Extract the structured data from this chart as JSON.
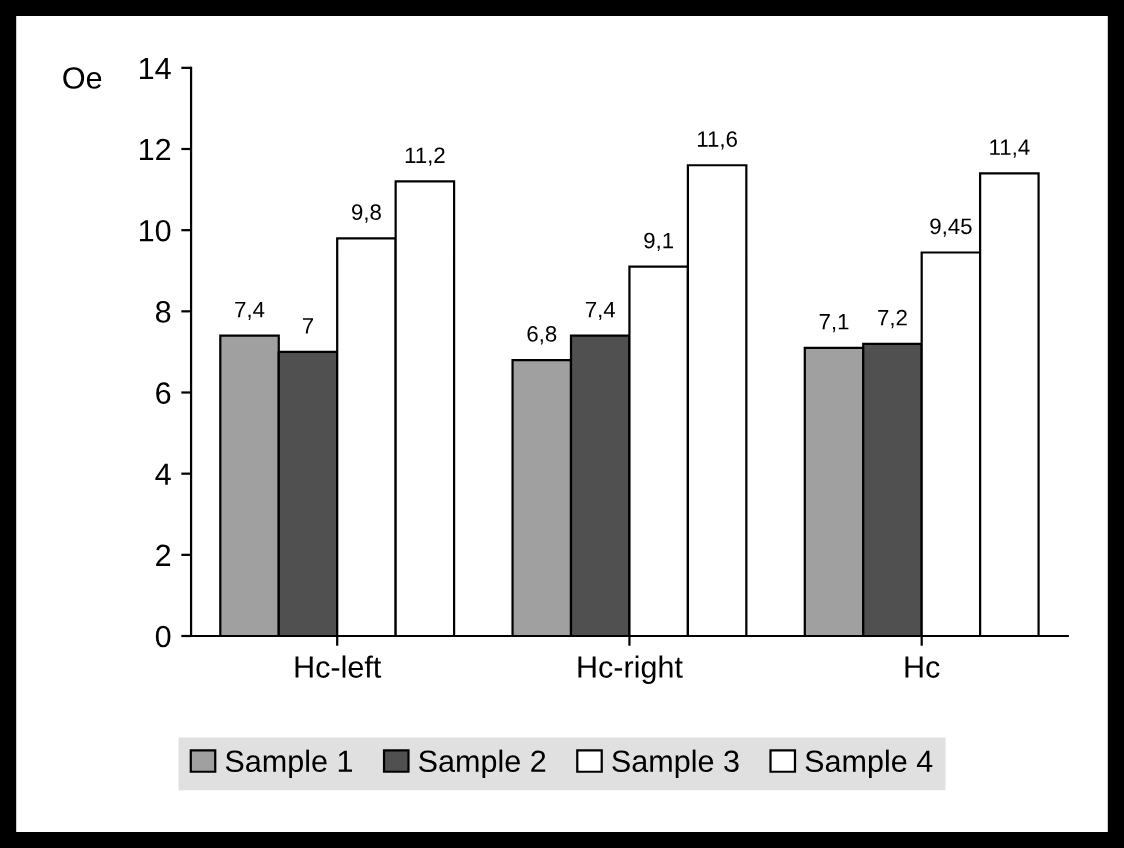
{
  "chart_data": {
    "type": "bar",
    "ylabel": "Oe",
    "categories": [
      "Hc-left",
      "Hc-right",
      "Hc"
    ],
    "series": [
      {
        "name": "Sample 1",
        "color": "#a0a0a0",
        "values": [
          7.4,
          6.8,
          7.1
        ],
        "value_labels": [
          "7,4",
          "6,8",
          "7,1"
        ]
      },
      {
        "name": "Sample 2",
        "color": "#505050",
        "values": [
          7,
          7.4,
          7.2
        ],
        "value_labels": [
          "7",
          "7,4",
          "7,2"
        ]
      },
      {
        "name": "Sample 3",
        "color": "#ffffff",
        "values": [
          9.8,
          9.1,
          9.45
        ],
        "value_labels": [
          "9,8",
          "9,1",
          "9,45"
        ]
      },
      {
        "name": "Sample 4",
        "color": "#ffffff",
        "values": [
          11.2,
          11.6,
          11.4
        ],
        "value_labels": [
          "11,2",
          "11,6",
          "11,4"
        ]
      }
    ],
    "ylim": [
      0,
      14
    ],
    "yticks": [
      0,
      2,
      4,
      6,
      8,
      10,
      12,
      14
    ],
    "grid": false,
    "legend": "bottom"
  }
}
